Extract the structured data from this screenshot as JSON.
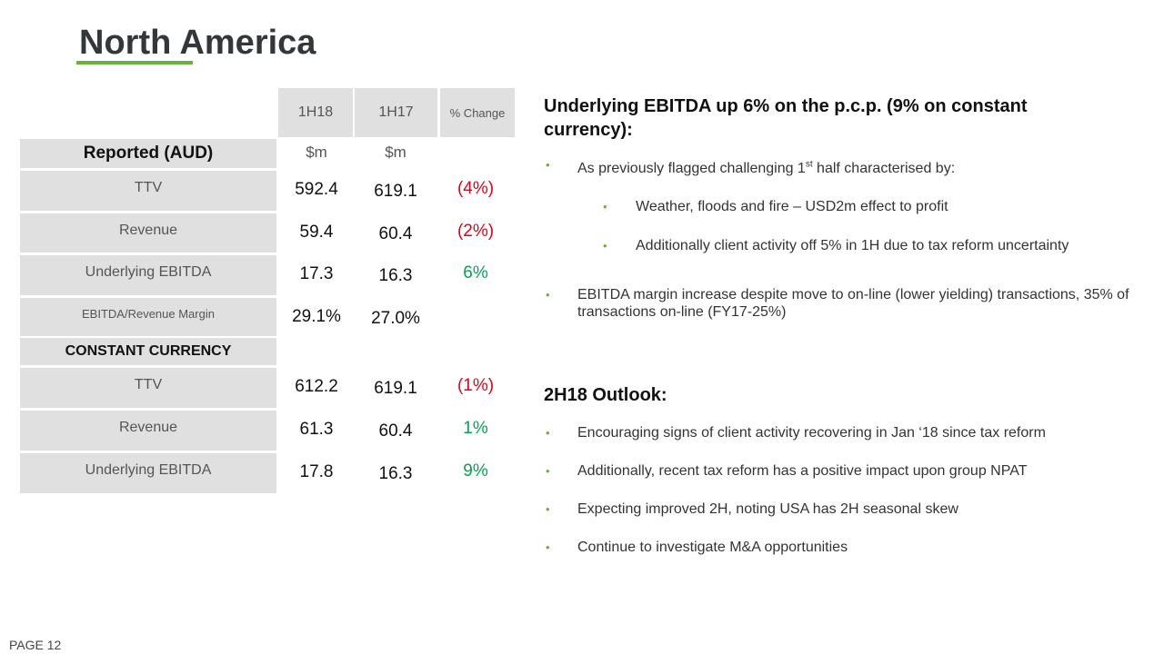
{
  "title": "North America",
  "table": {
    "headers": [
      "1H18",
      "1H17",
      "% Change"
    ],
    "reported_label": "Reported (AUD)",
    "units": [
      "$m",
      "$m"
    ],
    "reported_rows": [
      {
        "label": "TTV",
        "v1": "592.4",
        "v2": "619.1",
        "chg": "(4%)",
        "chg_color": "#e2001a"
      },
      {
        "label": "Revenue",
        "v1": "59.4",
        "v2": "60.4",
        "chg": "(2%)",
        "chg_color": "#e2001a"
      },
      {
        "label": "Underlying EBITDA",
        "v1": "17.3",
        "v2": "16.3",
        "chg": "6%",
        "chg_color": "#00a651"
      },
      {
        "label": "EBITDA/Revenue Margin",
        "v1": "29.1%",
        "v2": "27.0%",
        "chg": "",
        "chg_color": "#111"
      }
    ],
    "constant_label": "CONSTANT CURRENCY",
    "constant_rows": [
      {
        "label": "TTV",
        "v1": "612.2",
        "v2": "619.1",
        "chg": "(1%)",
        "chg_color": "#e2001a"
      },
      {
        "label": "Revenue",
        "v1": "61.3",
        "v2": "60.4",
        "chg": "1%",
        "chg_color": "#00a651"
      },
      {
        "label": "Underlying EBITDA",
        "v1": "17.8",
        "v2": "16.3",
        "chg": "9%",
        "chg_color": "#00a651"
      }
    ]
  },
  "commentary": {
    "heading1": "Underlying EBITDA up 6% on the p.c.p. (9% on constant currency):",
    "b1_pre": "As previously flagged challenging 1",
    "b1_sup": "st",
    "b1_post": " half characterised by:",
    "sub1": "Weather, floods and fire – USD2m effect to profit",
    "sub2": "Additionally client activity off 5% in 1H due to tax reform uncertainty",
    "b2": "EBITDA margin increase despite move to on-line (lower yielding) transactions, 35% of transactions on-line (FY17-25%)",
    "heading2": "2H18 Outlook:",
    "outlook": [
      "Encouraging signs of client activity recovering in Jan ‘18 since tax reform",
      "Additionally, recent tax reform has a positive impact upon group NPAT",
      "Expecting improved 2H, noting USA has 2H seasonal skew",
      "Continue to investigate M&A opportunities"
    ],
    "bullet": "•"
  },
  "footer": "PAGE 12"
}
